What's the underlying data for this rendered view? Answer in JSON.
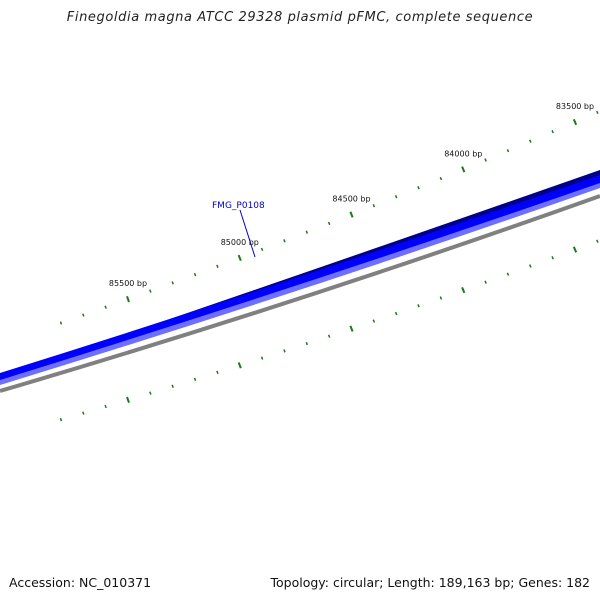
{
  "title": "Finegoldia magna ATCC 29328 plasmid pFMC, complete sequence",
  "footer": {
    "accession_text": "Accession: NC_010371",
    "summary_text": "Topology: circular; Length: 189,163 bp; Genes: 182"
  },
  "colors": {
    "backbone": "#808080",
    "gene_fill": "#0000ff",
    "gene_dark": "#00008b",
    "gene_light": "#6f6fff",
    "tick": "#1a7a1a",
    "gene_label": "#0000cc",
    "leader": "#0000cc"
  },
  "gene": {
    "label": "FMG_P0108"
  },
  "scale_labels": [
    {
      "text": "83500 bp",
      "bp": 83500
    },
    {
      "text": "84000 bp",
      "bp": 84000
    },
    {
      "text": "84500 bp",
      "bp": 84500
    },
    {
      "text": "85000 bp",
      "bp": 85000
    },
    {
      "text": "85500 bp",
      "bp": 85500
    }
  ]
}
